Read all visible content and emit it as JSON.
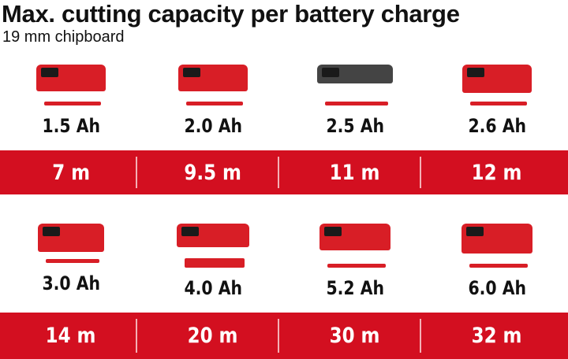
{
  "title": "Max. cutting capacity per battery charge",
  "subtitle": "19 mm chipboard",
  "accent_color": "#d30f20",
  "rows": [
    {
      "batteries": [
        {
          "capacity": "1.5 Ah",
          "result": "7 m"
        },
        {
          "capacity": "2.0 Ah",
          "result": "9.5 m"
        },
        {
          "capacity": "2.5 Ah",
          "result": "11 m"
        },
        {
          "capacity": "2.6 Ah",
          "result": "12 m"
        }
      ]
    },
    {
      "batteries": [
        {
          "capacity": "3.0 Ah",
          "result": "14 m"
        },
        {
          "capacity": "4.0 Ah",
          "result": "20 m"
        },
        {
          "capacity": "5.2 Ah",
          "result": "30 m"
        },
        {
          "capacity": "6.0 Ah",
          "result": "32 m"
        }
      ]
    }
  ]
}
